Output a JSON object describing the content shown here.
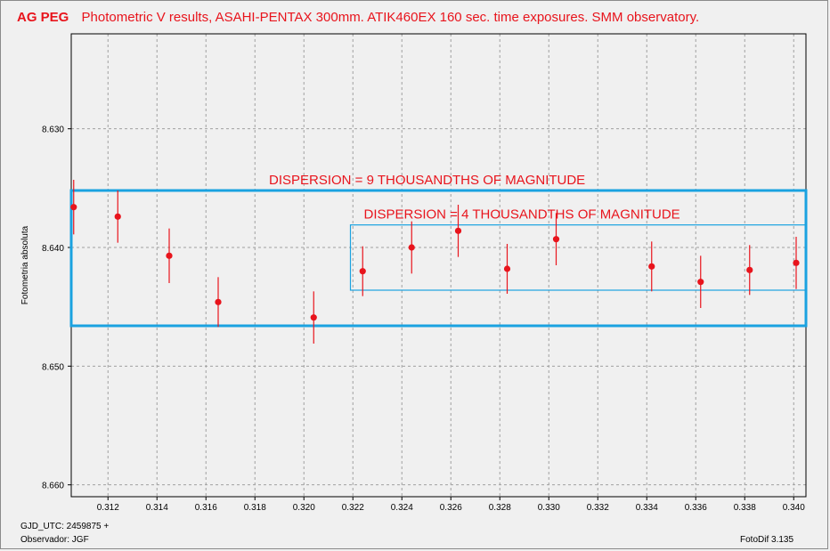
{
  "title": {
    "object": "AG PEG",
    "text": "Photometric  V  results,  ASAHI-PENTAX 300mm. ATIK460EX 160 sec. time exposures.  SMM observatory."
  },
  "footer": {
    "gjd": "GJD_UTC: 2459875 +",
    "observer": "Observador: JGF",
    "software": "FotoDif 3.135"
  },
  "colors": {
    "points": "#e8141c",
    "boxes": "#1aa2e0",
    "grid": "#a0a0a0",
    "text_accent": "#e8141c"
  },
  "chart_data": {
    "type": "scatter",
    "title": "AG PEG  Photometric  V  results,  ASAHI-PENTAX 300mm. ATIK460EX 160 sec. time exposures.  SMM observatory.",
    "xlabel": "",
    "ylabel": "Fotometria absoluta",
    "xlim": [
      0.3105,
      0.3405
    ],
    "ylim": [
      8.622,
      8.661
    ],
    "y_inverted": true,
    "grid": true,
    "x_ticks": [
      "0.312",
      "0.314",
      "0.316",
      "0.318",
      "0.320",
      "0.322",
      "0.324",
      "0.326",
      "0.328",
      "0.330",
      "0.332",
      "0.334",
      "0.336",
      "0.338",
      "0.340"
    ],
    "x_tick_values": [
      0.312,
      0.314,
      0.316,
      0.318,
      0.32,
      0.322,
      0.324,
      0.326,
      0.328,
      0.33,
      0.332,
      0.334,
      0.336,
      0.338,
      0.34
    ],
    "y_ticks": [
      "8.630",
      "8.640",
      "8.650",
      "8.660"
    ],
    "y_tick_values": [
      8.63,
      8.64,
      8.65,
      8.66
    ],
    "points": [
      {
        "x": 0.3106,
        "y": 8.6366,
        "err": 0.0023
      },
      {
        "x": 0.3124,
        "y": 8.6374,
        "err": 0.0022
      },
      {
        "x": 0.3145,
        "y": 8.6407,
        "err": 0.0023
      },
      {
        "x": 0.3165,
        "y": 8.6446,
        "err": 0.0021
      },
      {
        "x": 0.3204,
        "y": 8.6459,
        "err": 0.0022
      },
      {
        "x": 0.3224,
        "y": 8.642,
        "err": 0.0021
      },
      {
        "x": 0.3244,
        "y": 8.64,
        "err": 0.0022
      },
      {
        "x": 0.3263,
        "y": 8.6386,
        "err": 0.0022
      },
      {
        "x": 0.3283,
        "y": 8.6418,
        "err": 0.0021
      },
      {
        "x": 0.3303,
        "y": 8.6393,
        "err": 0.0022
      },
      {
        "x": 0.3342,
        "y": 8.6416,
        "err": 0.0021
      },
      {
        "x": 0.3362,
        "y": 8.6429,
        "err": 0.0022
      },
      {
        "x": 0.3382,
        "y": 8.6419,
        "err": 0.0021
      },
      {
        "x": 0.3401,
        "y": 8.6413,
        "err": 0.0022
      }
    ],
    "annotations": [
      {
        "text": "DISPERSION = 9 THOUSANDTHS  OF  MAGNITUDE",
        "x0": 0.3105,
        "x1": 0.3405,
        "y0": 8.6352,
        "y1": 8.6466
      },
      {
        "text": "DISPERSION = 4 THOUSANDTHS  OF MAGNITUDE",
        "x0": 0.3219,
        "x1": 0.3405,
        "y0": 8.6381,
        "y1": 8.6436
      }
    ]
  }
}
